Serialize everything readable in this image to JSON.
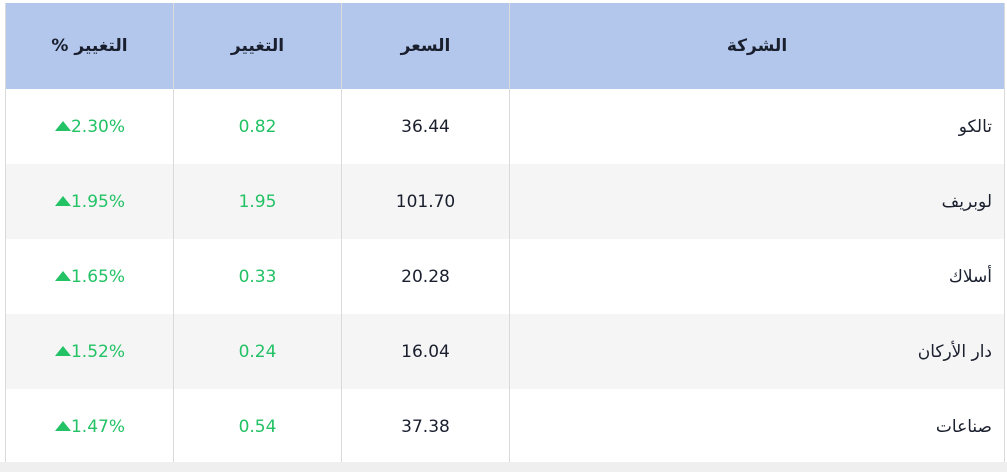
{
  "table": {
    "headers": {
      "company": "الشركة",
      "price": "السعر",
      "change": "التغيير",
      "change_pct": "التغيير %"
    },
    "rows": [
      {
        "company": "تالكو",
        "price": "36.44",
        "change": "0.82",
        "change_pct": "2.30%",
        "direction": "up"
      },
      {
        "company": "لوبريف",
        "price": "101.70",
        "change": "1.95",
        "change_pct": "1.95%",
        "direction": "up"
      },
      {
        "company": "أسلاك",
        "price": "20.28",
        "change": "0.33",
        "change_pct": "1.65%",
        "direction": "up"
      },
      {
        "company": "دار الأركان",
        "price": "16.04",
        "change": "0.24",
        "change_pct": "1.52%",
        "direction": "up"
      },
      {
        "company": "صناعات",
        "price": "37.38",
        "change": "0.54",
        "change_pct": "1.47%",
        "direction": "up"
      }
    ]
  },
  "colors": {
    "header_bg": "#b3c6ec",
    "positive": "#22c265",
    "alt_row": "#f5f5f5"
  }
}
